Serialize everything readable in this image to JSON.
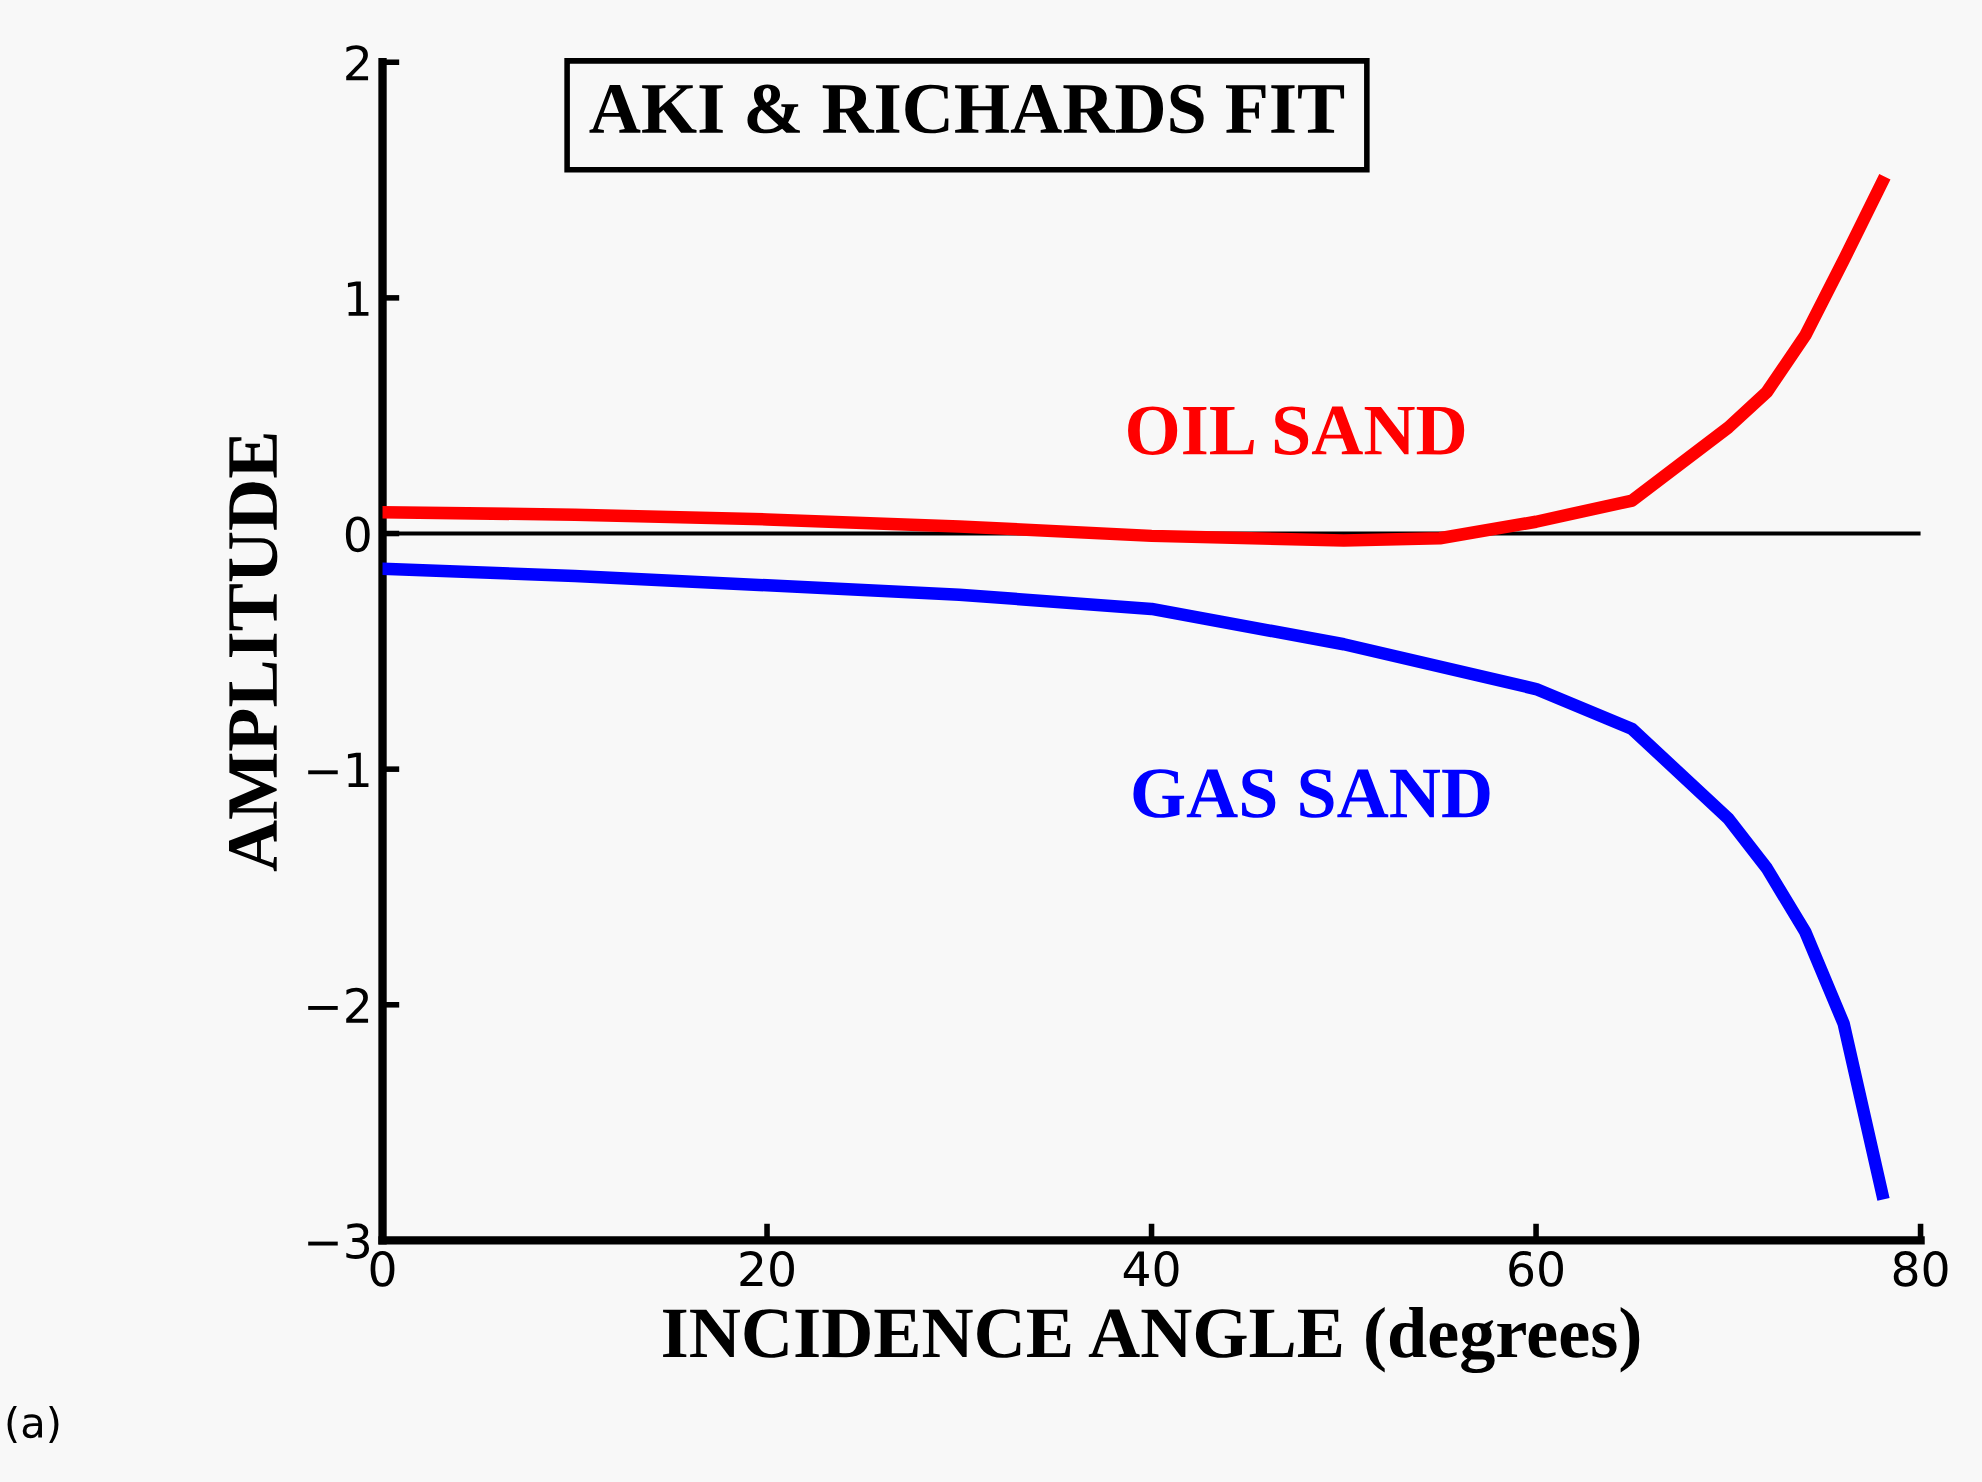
{
  "chart_data": {
    "type": "line",
    "title": "AKI & RICHARDS FIT",
    "xlabel": "INCIDENCE ANGLE (degrees)",
    "ylabel": "AMPLITUDE",
    "xlim": [
      0,
      80
    ],
    "ylim": [
      -3,
      2
    ],
    "xticks": [
      0,
      20,
      40,
      60,
      80
    ],
    "yticks": [
      {
        "value": -3,
        "label": "−3"
      },
      {
        "value": -2,
        "label": "−2"
      },
      {
        "value": -1,
        "label": "−1"
      },
      0,
      1,
      2
    ],
    "grid": false,
    "legend": false,
    "line_style": "solid",
    "marker": "none",
    "ref_lines": [
      {
        "axis": "y",
        "value": 0,
        "color": "#000000"
      }
    ],
    "series": [
      {
        "name": "OIL SAND",
        "color": "#ff0000",
        "x": [
          0,
          10,
          20,
          30,
          40,
          50,
          55,
          60,
          65,
          70,
          72,
          74,
          76,
          78
        ],
        "values": [
          0.09,
          0.08,
          0.06,
          0.03,
          -0.01,
          -0.03,
          -0.02,
          0.05,
          0.14,
          0.45,
          0.6,
          0.84,
          1.16,
          1.49
        ]
      },
      {
        "name": "GAS SAND",
        "color": "#0000ff",
        "x": [
          0,
          10,
          20,
          30,
          40,
          50,
          60,
          65,
          70,
          72,
          74,
          76,
          78
        ],
        "values": [
          -0.15,
          -0.18,
          -0.22,
          -0.26,
          -0.32,
          -0.47,
          -0.66,
          -0.83,
          -1.21,
          -1.42,
          -1.69,
          -2.08,
          -2.8
        ]
      }
    ],
    "annotations": [
      "(a)"
    ]
  }
}
